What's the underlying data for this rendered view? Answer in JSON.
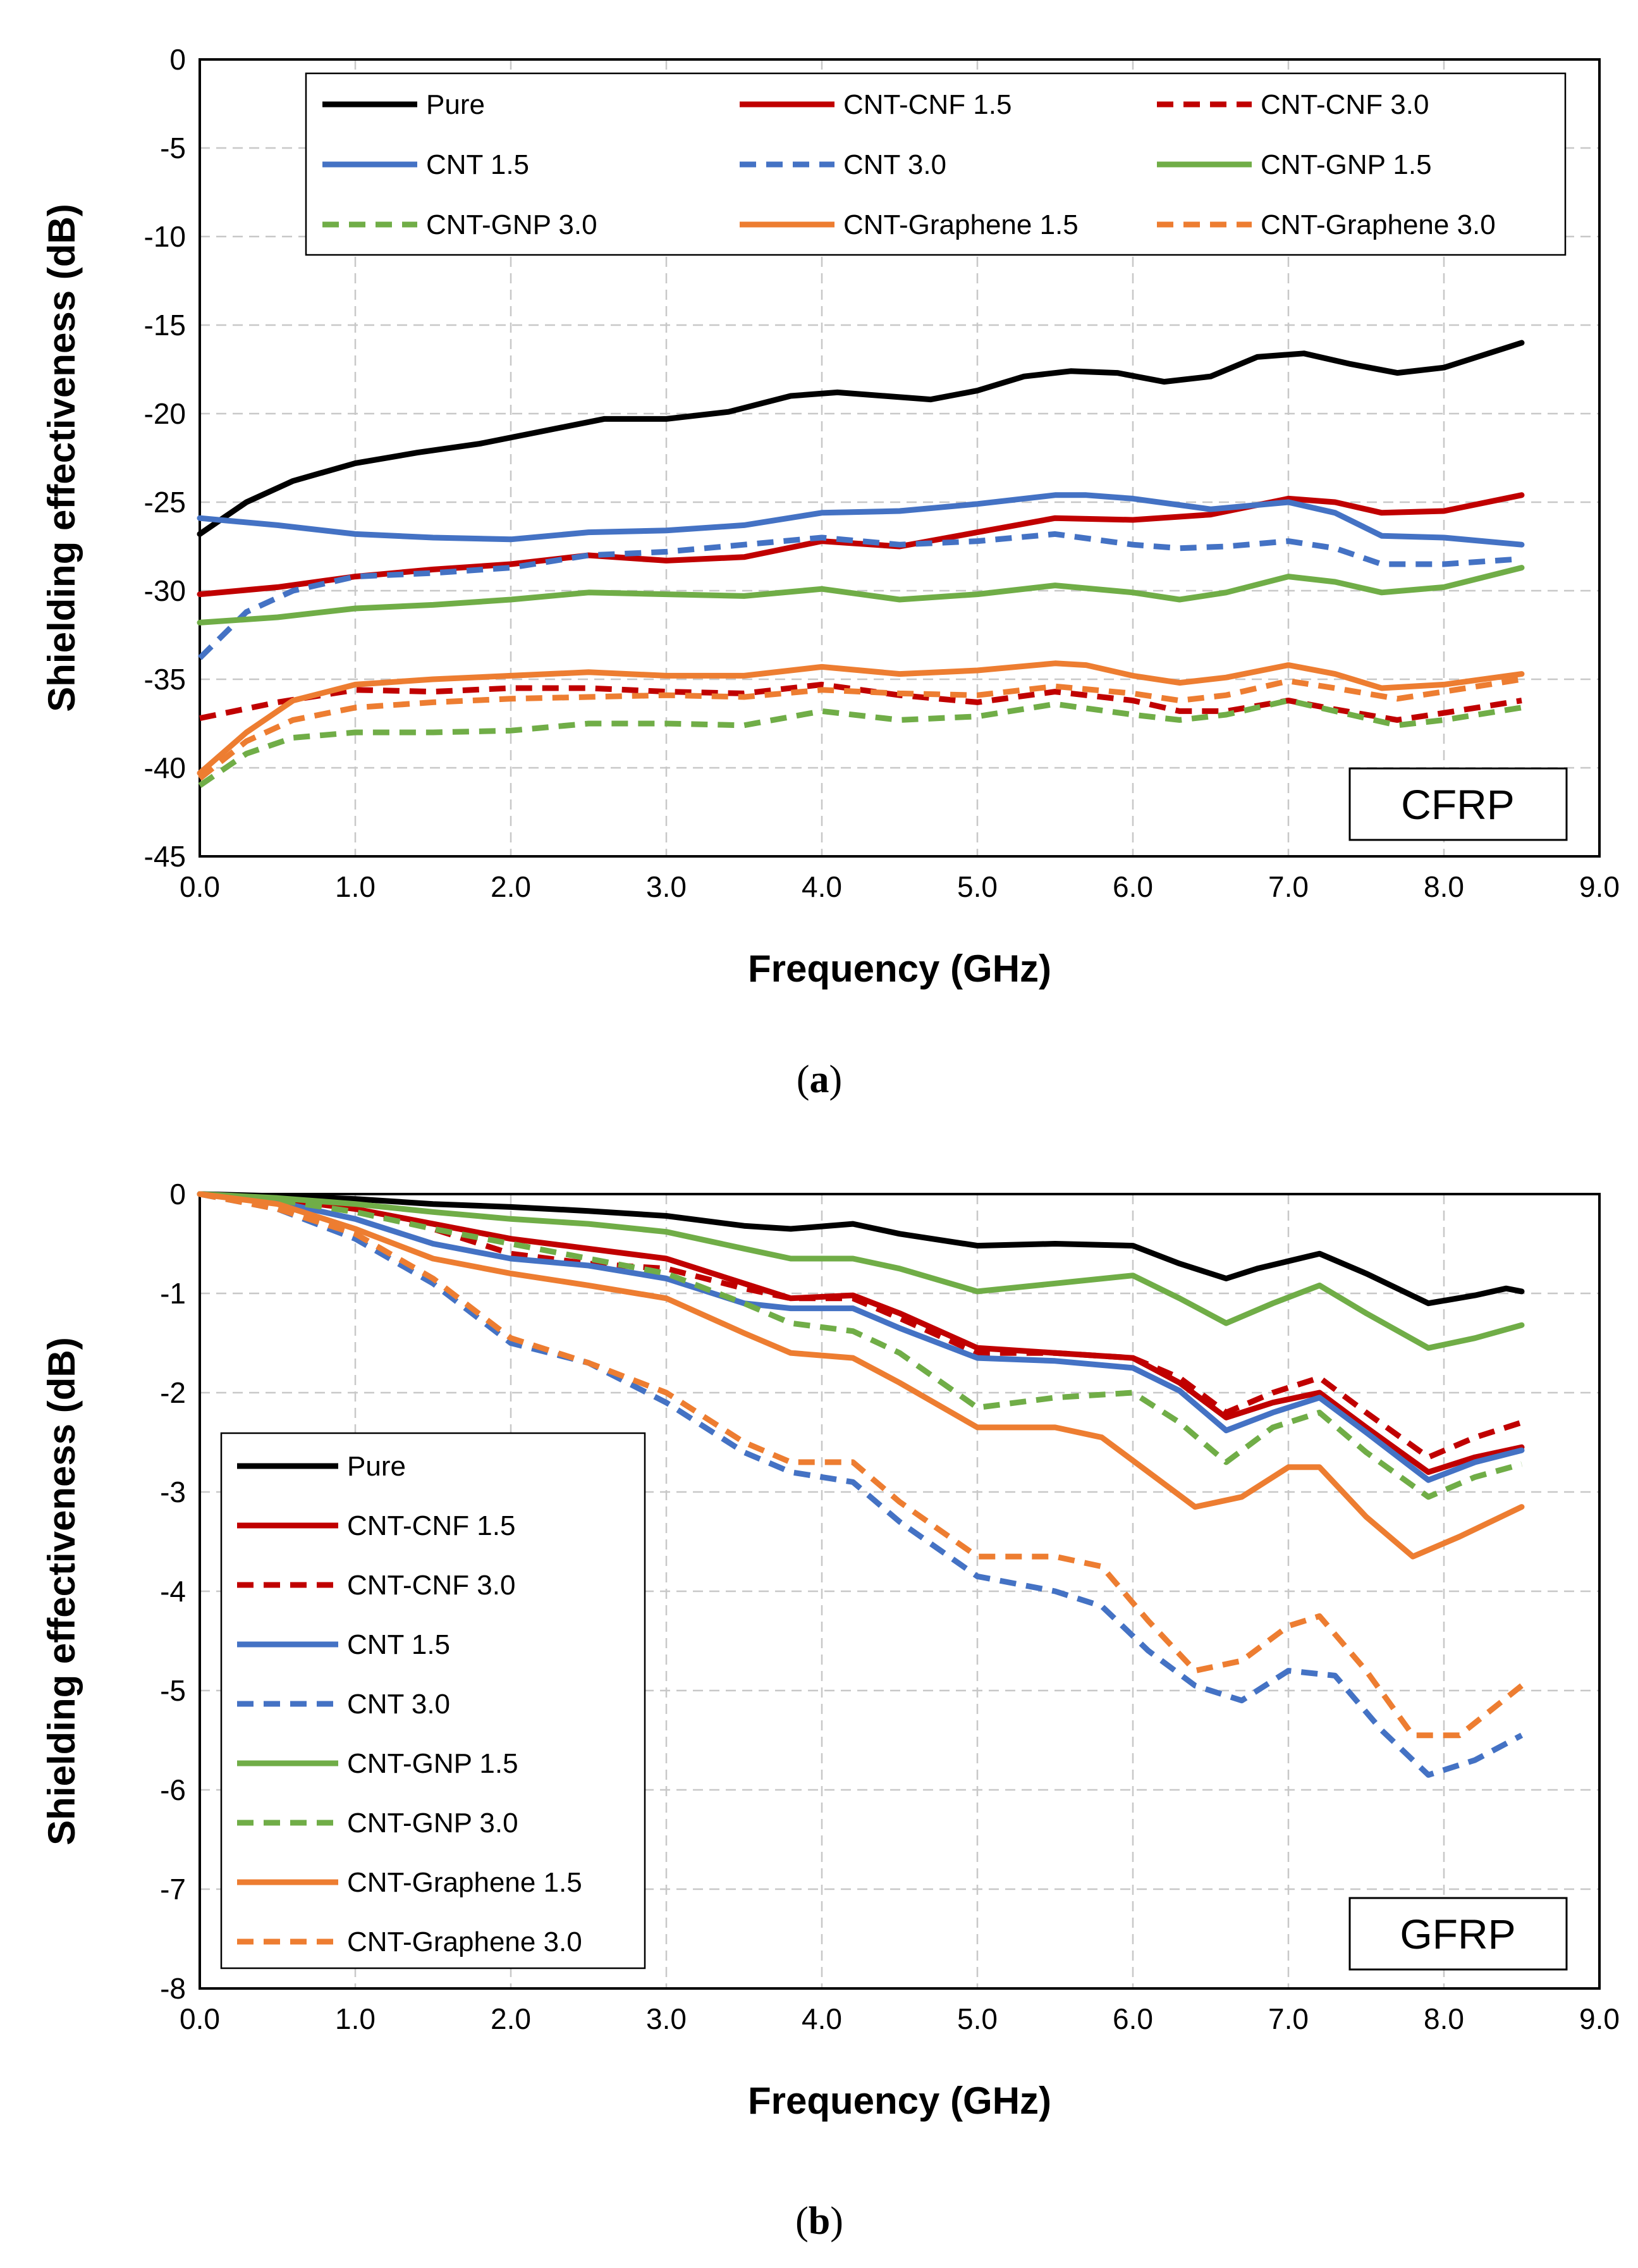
{
  "chart_data": [
    {
      "type": "line",
      "panel": "a",
      "caption_letter": "a",
      "annotation": "CFRP",
      "xlabel": "Frequency (GHz)",
      "ylabel": "Shielding effectiveness (dB)",
      "xlim": [
        0,
        9
      ],
      "ylim": [
        -45,
        0
      ],
      "xticks": [
        "0.0",
        "1.0",
        "2.0",
        "3.0",
        "4.0",
        "5.0",
        "6.0",
        "7.0",
        "8.0",
        "9.0"
      ],
      "yticks": [
        "0",
        "-5",
        "-10",
        "-15",
        "-20",
        "-25",
        "-30",
        "-35",
        "-40",
        "-45"
      ],
      "grid": true,
      "legend_placement": "top, 3 columns",
      "series": [
        {
          "name": "Pure",
          "color": "#000000",
          "dash": false,
          "x": [
            0,
            0.3,
            0.6,
            1.0,
            1.4,
            1.8,
            2.2,
            2.6,
            3.0,
            3.4,
            3.8,
            4.1,
            4.4,
            4.7,
            5.0,
            5.3,
            5.6,
            5.9,
            6.2,
            6.5,
            6.8,
            7.1,
            7.4,
            7.7,
            8.0,
            8.5
          ],
          "y": [
            -26.8,
            -25,
            -23.8,
            -22.8,
            -22.2,
            -21.7,
            -21,
            -20.3,
            -20.3,
            -19.9,
            -19,
            -18.8,
            -19,
            -19.2,
            -18.7,
            -17.9,
            -17.6,
            -17.7,
            -18.2,
            -17.9,
            -16.8,
            -16.6,
            -17.2,
            -17.7,
            -17.4,
            -16
          ]
        },
        {
          "name": "CNT-CNF 1.5",
          "color": "#c00000",
          "dash": false,
          "x": [
            0,
            0.5,
            1.0,
            1.5,
            2.0,
            2.5,
            3.0,
            3.5,
            4.0,
            4.5,
            5.0,
            5.5,
            6.0,
            6.5,
            7.0,
            7.3,
            7.6,
            8.0,
            8.5
          ],
          "y": [
            -30.2,
            -29.8,
            -29.2,
            -28.8,
            -28.5,
            -28,
            -28.3,
            -28.1,
            -27.2,
            -27.5,
            -26.7,
            -25.9,
            -26,
            -25.7,
            -24.8,
            -25,
            -25.6,
            -25.5,
            -24.6
          ]
        },
        {
          "name": "CNT-CNF 3.0",
          "color": "#c00000",
          "dash": true,
          "x": [
            0,
            0.5,
            1.0,
            1.5,
            2.0,
            2.5,
            3.0,
            3.5,
            4.0,
            4.5,
            5.0,
            5.5,
            6.0,
            6.3,
            6.6,
            7.0,
            7.3,
            7.7,
            8.0,
            8.5
          ],
          "y": [
            -37.2,
            -36.3,
            -35.6,
            -35.7,
            -35.5,
            -35.5,
            -35.7,
            -35.8,
            -35.3,
            -35.9,
            -36.3,
            -35.7,
            -36.2,
            -36.8,
            -36.8,
            -36.2,
            -36.7,
            -37.3,
            -36.9,
            -36.2
          ]
        },
        {
          "name": "CNT 1.5",
          "color": "#4472c4",
          "dash": false,
          "x": [
            0,
            0.5,
            1.0,
            1.5,
            2.0,
            2.5,
            3.0,
            3.5,
            4.0,
            4.5,
            5.0,
            5.5,
            5.7,
            6.0,
            6.5,
            7.0,
            7.3,
            7.6,
            8.0,
            8.5
          ],
          "y": [
            -25.9,
            -26.3,
            -26.8,
            -27,
            -27.1,
            -26.7,
            -26.6,
            -26.3,
            -25.6,
            -25.5,
            -25.1,
            -24.6,
            -24.6,
            -24.8,
            -25.4,
            -25,
            -25.6,
            -26.9,
            -27,
            -27.4
          ]
        },
        {
          "name": "CNT 3.0",
          "color": "#4472c4",
          "dash": true,
          "x": [
            0,
            0.3,
            0.6,
            1.0,
            1.5,
            2.0,
            2.5,
            3.0,
            3.5,
            4.0,
            4.5,
            5.0,
            5.5,
            6.0,
            6.3,
            6.6,
            7.0,
            7.3,
            7.6,
            8.0,
            8.5
          ],
          "y": [
            -33.8,
            -31.2,
            -30,
            -29.2,
            -29,
            -28.7,
            -28,
            -27.8,
            -27.4,
            -27,
            -27.4,
            -27.2,
            -26.8,
            -27.4,
            -27.6,
            -27.5,
            -27.2,
            -27.6,
            -28.5,
            -28.5,
            -28.2
          ]
        },
        {
          "name": "CNT-GNP 1.5",
          "color": "#70ad47",
          "dash": false,
          "x": [
            0,
            0.5,
            1.0,
            1.5,
            2.0,
            2.5,
            3.0,
            3.5,
            4.0,
            4.5,
            5.0,
            5.5,
            6.0,
            6.3,
            6.6,
            7.0,
            7.3,
            7.6,
            8.0,
            8.5
          ],
          "y": [
            -31.8,
            -31.5,
            -31,
            -30.8,
            -30.5,
            -30.1,
            -30.2,
            -30.3,
            -29.9,
            -30.5,
            -30.2,
            -29.7,
            -30.1,
            -30.5,
            -30.1,
            -29.2,
            -29.5,
            -30.1,
            -29.8,
            -28.7
          ]
        },
        {
          "name": "CNT-GNP 3.0",
          "color": "#70ad47",
          "dash": true,
          "x": [
            0,
            0.3,
            0.6,
            1.0,
            1.5,
            2.0,
            2.5,
            3.0,
            3.5,
            4.0,
            4.5,
            5.0,
            5.5,
            6.0,
            6.3,
            6.6,
            7.0,
            7.3,
            7.7,
            8.0,
            8.5
          ],
          "y": [
            -41,
            -39.2,
            -38.3,
            -38,
            -38,
            -37.9,
            -37.5,
            -37.5,
            -37.6,
            -36.8,
            -37.3,
            -37.1,
            -36.4,
            -37,
            -37.3,
            -37,
            -36.2,
            -36.8,
            -37.6,
            -37.3,
            -36.6
          ]
        },
        {
          "name": "CNT-Graphene 1.5",
          "color": "#ed7d31",
          "dash": false,
          "x": [
            0,
            0.3,
            0.6,
            1.0,
            1.5,
            2.0,
            2.5,
            3.0,
            3.5,
            4.0,
            4.5,
            5.0,
            5.5,
            5.7,
            6.0,
            6.3,
            6.6,
            7.0,
            7.3,
            7.6,
            8.0,
            8.5
          ],
          "y": [
            -40.3,
            -38,
            -36.2,
            -35.3,
            -35,
            -34.8,
            -34.6,
            -34.8,
            -34.8,
            -34.3,
            -34.7,
            -34.5,
            -34.1,
            -34.2,
            -34.8,
            -35.2,
            -34.9,
            -34.2,
            -34.7,
            -35.5,
            -35.3,
            -34.7
          ]
        },
        {
          "name": "CNT-Graphene 3.0",
          "color": "#ed7d31",
          "dash": true,
          "x": [
            0,
            0.3,
            0.6,
            1.0,
            1.5,
            2.0,
            2.5,
            3.0,
            3.5,
            4.0,
            4.5,
            5.0,
            5.5,
            6.0,
            6.3,
            6.6,
            7.0,
            7.3,
            7.7,
            8.0,
            8.5
          ],
          "y": [
            -40.6,
            -38.5,
            -37.3,
            -36.6,
            -36.3,
            -36.1,
            -36,
            -35.9,
            -36,
            -35.6,
            -35.8,
            -35.9,
            -35.4,
            -35.8,
            -36.2,
            -35.9,
            -35.1,
            -35.5,
            -36.1,
            -35.7,
            -35
          ]
        }
      ]
    },
    {
      "type": "line",
      "panel": "b",
      "caption_letter": "b",
      "annotation": "GFRP",
      "xlabel": "Frequency (GHz)",
      "ylabel": "Shielding effectiveness (dB)",
      "xlim": [
        0,
        9
      ],
      "ylim": [
        -8,
        0
      ],
      "xticks": [
        "0.0",
        "1.0",
        "2.0",
        "3.0",
        "4.0",
        "5.0",
        "6.0",
        "7.0",
        "8.0",
        "9.0"
      ],
      "yticks": [
        "0",
        "-1",
        "-2",
        "-3",
        "-4",
        "-5",
        "-6",
        "-7",
        "-8"
      ],
      "grid": true,
      "legend_placement": "bottom-left, 1 column",
      "series": [
        {
          "name": "Pure",
          "color": "#000000",
          "dash": false,
          "x": [
            0,
            0.5,
            1.0,
            1.5,
            2.0,
            2.5,
            3.0,
            3.5,
            3.8,
            4.2,
            4.5,
            5.0,
            5.5,
            6.0,
            6.3,
            6.6,
            6.8,
            7.2,
            7.5,
            7.9,
            8.2,
            8.4,
            8.5
          ],
          "y": [
            0,
            -0.02,
            -0.05,
            -0.1,
            -0.13,
            -0.17,
            -0.22,
            -0.32,
            -0.35,
            -0.3,
            -0.4,
            -0.52,
            -0.5,
            -0.52,
            -0.7,
            -0.85,
            -0.75,
            -0.6,
            -0.8,
            -1.1,
            -1.02,
            -0.95,
            -0.98
          ]
        },
        {
          "name": "CNT-CNF 1.5",
          "color": "#c00000",
          "dash": false,
          "x": [
            0,
            0.5,
            1.0,
            1.5,
            2.0,
            2.5,
            3.0,
            3.5,
            3.8,
            4.2,
            4.5,
            5.0,
            5.5,
            6.0,
            6.3,
            6.6,
            6.9,
            7.2,
            7.5,
            7.9,
            8.2,
            8.5
          ],
          "y": [
            0,
            -0.05,
            -0.15,
            -0.3,
            -0.45,
            -0.55,
            -0.65,
            -0.9,
            -1.05,
            -1.02,
            -1.2,
            -1.55,
            -1.6,
            -1.65,
            -1.9,
            -2.25,
            -2.1,
            -2,
            -2.35,
            -2.8,
            -2.65,
            -2.55
          ]
        },
        {
          "name": "CNT-CNF 3.0",
          "color": "#c00000",
          "dash": true,
          "x": [
            0,
            0.5,
            1.0,
            1.5,
            2.0,
            2.5,
            3.0,
            3.5,
            3.8,
            4.2,
            4.5,
            5.0,
            5.5,
            6.0,
            6.3,
            6.6,
            6.9,
            7.2,
            7.5,
            7.9,
            8.2,
            8.5
          ],
          "y": [
            0,
            -0.06,
            -0.15,
            -0.35,
            -0.6,
            -0.7,
            -0.75,
            -0.95,
            -1.05,
            -1.05,
            -1.25,
            -1.6,
            -1.6,
            -1.65,
            -1.85,
            -2.2,
            -2,
            -1.85,
            -2.2,
            -2.65,
            -2.45,
            -2.3
          ]
        },
        {
          "name": "CNT 1.5",
          "color": "#4472c4",
          "dash": false,
          "x": [
            0,
            0.5,
            1.0,
            1.5,
            2.0,
            2.5,
            3.0,
            3.5,
            3.8,
            4.2,
            4.5,
            5.0,
            5.5,
            6.0,
            6.3,
            6.6,
            6.9,
            7.2,
            7.5,
            7.9,
            8.2,
            8.5
          ],
          "y": [
            0,
            -0.08,
            -0.25,
            -0.5,
            -0.65,
            -0.72,
            -0.85,
            -1.1,
            -1.15,
            -1.15,
            -1.35,
            -1.65,
            -1.68,
            -1.75,
            -1.98,
            -2.38,
            -2.2,
            -2.05,
            -2.4,
            -2.88,
            -2.7,
            -2.58
          ]
        },
        {
          "name": "CNT 3.0",
          "color": "#4472c4",
          "dash": true,
          "x": [
            0,
            0.5,
            1.0,
            1.5,
            2.0,
            2.5,
            3.0,
            3.5,
            3.8,
            4.2,
            4.5,
            5.0,
            5.5,
            5.8,
            6.1,
            6.4,
            6.7,
            7.0,
            7.3,
            7.6,
            7.9,
            8.2,
            8.5
          ],
          "y": [
            0,
            -0.15,
            -0.45,
            -0.9,
            -1.5,
            -1.7,
            -2.1,
            -2.6,
            -2.8,
            -2.9,
            -3.3,
            -3.85,
            -4,
            -4.15,
            -4.6,
            -4.95,
            -5.1,
            -4.8,
            -4.85,
            -5.4,
            -5.85,
            -5.7,
            -5.45
          ]
        },
        {
          "name": "CNT-GNP 1.5",
          "color": "#70ad47",
          "dash": false,
          "x": [
            0,
            0.5,
            1.0,
            1.5,
            2.0,
            2.5,
            3.0,
            3.5,
            3.8,
            4.2,
            4.5,
            5.0,
            5.5,
            6.0,
            6.3,
            6.6,
            6.9,
            7.2,
            7.5,
            7.9,
            8.2,
            8.5
          ],
          "y": [
            0,
            -0.04,
            -0.1,
            -0.18,
            -0.25,
            -0.3,
            -0.38,
            -0.55,
            -0.65,
            -0.65,
            -0.75,
            -0.98,
            -0.9,
            -0.82,
            -1.05,
            -1.3,
            -1.1,
            -0.92,
            -1.2,
            -1.55,
            -1.45,
            -1.32
          ]
        },
        {
          "name": "CNT-GNP 3.0",
          "color": "#70ad47",
          "dash": true,
          "x": [
            0,
            0.5,
            1.0,
            1.5,
            2.0,
            2.5,
            3.0,
            3.5,
            3.8,
            4.2,
            4.5,
            5.0,
            5.5,
            6.0,
            6.3,
            6.6,
            6.9,
            7.2,
            7.5,
            7.9,
            8.2,
            8.5
          ],
          "y": [
            0,
            -0.06,
            -0.18,
            -0.35,
            -0.5,
            -0.65,
            -0.8,
            -1.1,
            -1.3,
            -1.38,
            -1.6,
            -2.15,
            -2.05,
            -2,
            -2.3,
            -2.7,
            -2.35,
            -2.2,
            -2.6,
            -3.05,
            -2.85,
            -2.72
          ]
        },
        {
          "name": "CNT-Graphene 1.5",
          "color": "#ed7d31",
          "dash": false,
          "x": [
            0,
            0.5,
            1.0,
            1.5,
            2.0,
            2.5,
            3.0,
            3.5,
            3.8,
            4.2,
            4.5,
            5.0,
            5.5,
            5.8,
            6.1,
            6.4,
            6.7,
            7.0,
            7.2,
            7.5,
            7.8,
            8.1,
            8.5
          ],
          "y": [
            0,
            -0.1,
            -0.35,
            -0.65,
            -0.8,
            -0.92,
            -1.05,
            -1.4,
            -1.6,
            -1.65,
            -1.9,
            -2.35,
            -2.35,
            -2.45,
            -2.8,
            -3.15,
            -3.05,
            -2.75,
            -2.75,
            -3.25,
            -3.65,
            -3.45,
            -3.15
          ]
        },
        {
          "name": "CNT-Graphene 3.0",
          "color": "#ed7d31",
          "dash": true,
          "x": [
            0,
            0.5,
            1.0,
            1.5,
            2.0,
            2.5,
            3.0,
            3.5,
            3.8,
            4.2,
            4.5,
            5.0,
            5.5,
            5.8,
            6.1,
            6.4,
            6.7,
            7.0,
            7.2,
            7.5,
            7.8,
            8.1,
            8.5
          ],
          "y": [
            0,
            -0.15,
            -0.4,
            -0.85,
            -1.45,
            -1.7,
            -2,
            -2.5,
            -2.7,
            -2.7,
            -3.1,
            -3.65,
            -3.65,
            -3.75,
            -4.3,
            -4.8,
            -4.7,
            -4.35,
            -4.25,
            -4.8,
            -5.45,
            -5.45,
            -4.95
          ]
        }
      ]
    }
  ]
}
